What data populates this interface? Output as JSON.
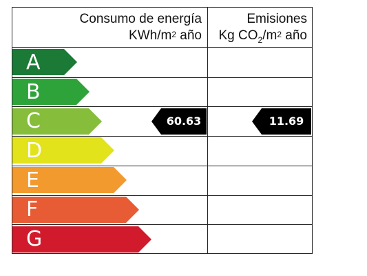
{
  "header": {
    "consumo_line1": "Consumo de energía",
    "consumo_unit_a": "KWh/m",
    "consumo_unit_sup": "2",
    "consumo_unit_b": " año",
    "emisiones_line1": "Emisiones",
    "emisiones_unit_a": "Kg CO",
    "emisiones_unit_sub": "2",
    "emisiones_unit_b": "/m",
    "emisiones_unit_sup": "2",
    "emisiones_unit_c": " año"
  },
  "classes": [
    {
      "letter": "A",
      "color": "#1a7a36"
    },
    {
      "letter": "B",
      "color": "#2ea33a"
    },
    {
      "letter": "C",
      "color": "#86bd3b"
    },
    {
      "letter": "D",
      "color": "#e3e31b"
    },
    {
      "letter": "E",
      "color": "#f39a2e"
    },
    {
      "letter": "F",
      "color": "#e85c35"
    },
    {
      "letter": "G",
      "color": "#d11b2d"
    }
  ],
  "rating": {
    "class": "C",
    "consumo_value": "60.63",
    "emisiones_value": "11.69",
    "marker_color": "#000000"
  }
}
